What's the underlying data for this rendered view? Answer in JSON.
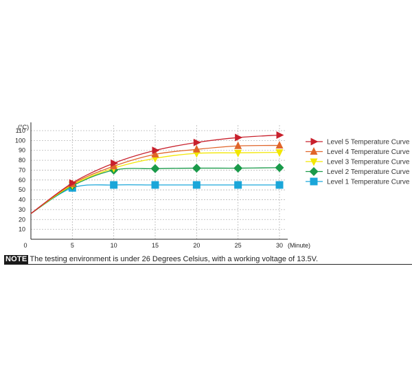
{
  "chart_data": {
    "type": "line",
    "y_unit_label": "(°C)",
    "x_unit_label": "(Minute)",
    "x": [
      0,
      5,
      10,
      15,
      20,
      25,
      30
    ],
    "xlim": [
      0,
      30
    ],
    "ylim": [
      0,
      110
    ],
    "x_ticks": [
      0,
      5,
      10,
      15,
      20,
      25,
      30
    ],
    "y_ticks": [
      10,
      20,
      30,
      40,
      50,
      60,
      70,
      80,
      90,
      100,
      110
    ],
    "grid": true,
    "legend_position": "right",
    "series": [
      {
        "name": "Level 5 Temperature Curve",
        "color": "#c8202c",
        "marker": "triangle-right",
        "values": [
          26,
          57,
          77,
          90,
          98,
          103,
          105.5
        ]
      },
      {
        "name": "Level 4 Temperature Curve",
        "color": "#e0652a",
        "marker": "triangle-up",
        "values": [
          26,
          56,
          74,
          86,
          91,
          94.5,
          95
        ]
      },
      {
        "name": "Level 3 Temperature Curve",
        "color": "#f2e600",
        "marker": "triangle-down",
        "values": [
          26,
          55,
          72,
          82,
          87,
          87.5,
          88
        ]
      },
      {
        "name": "Level 2 Temperature Curve",
        "color": "#1a9a4a",
        "marker": "diamond",
        "values": [
          26,
          54,
          70,
          71.5,
          72,
          72,
          72.5
        ]
      },
      {
        "name": "Level 1 Temperature Curve",
        "color": "#1aa6d9",
        "marker": "square",
        "values": [
          26,
          52,
          55,
          55,
          55,
          55,
          55
        ]
      }
    ]
  },
  "note": {
    "badge": "NOTE",
    "text": "The testing environment is under 26 Degrees Celsius, with a working voltage of 13.5V."
  }
}
